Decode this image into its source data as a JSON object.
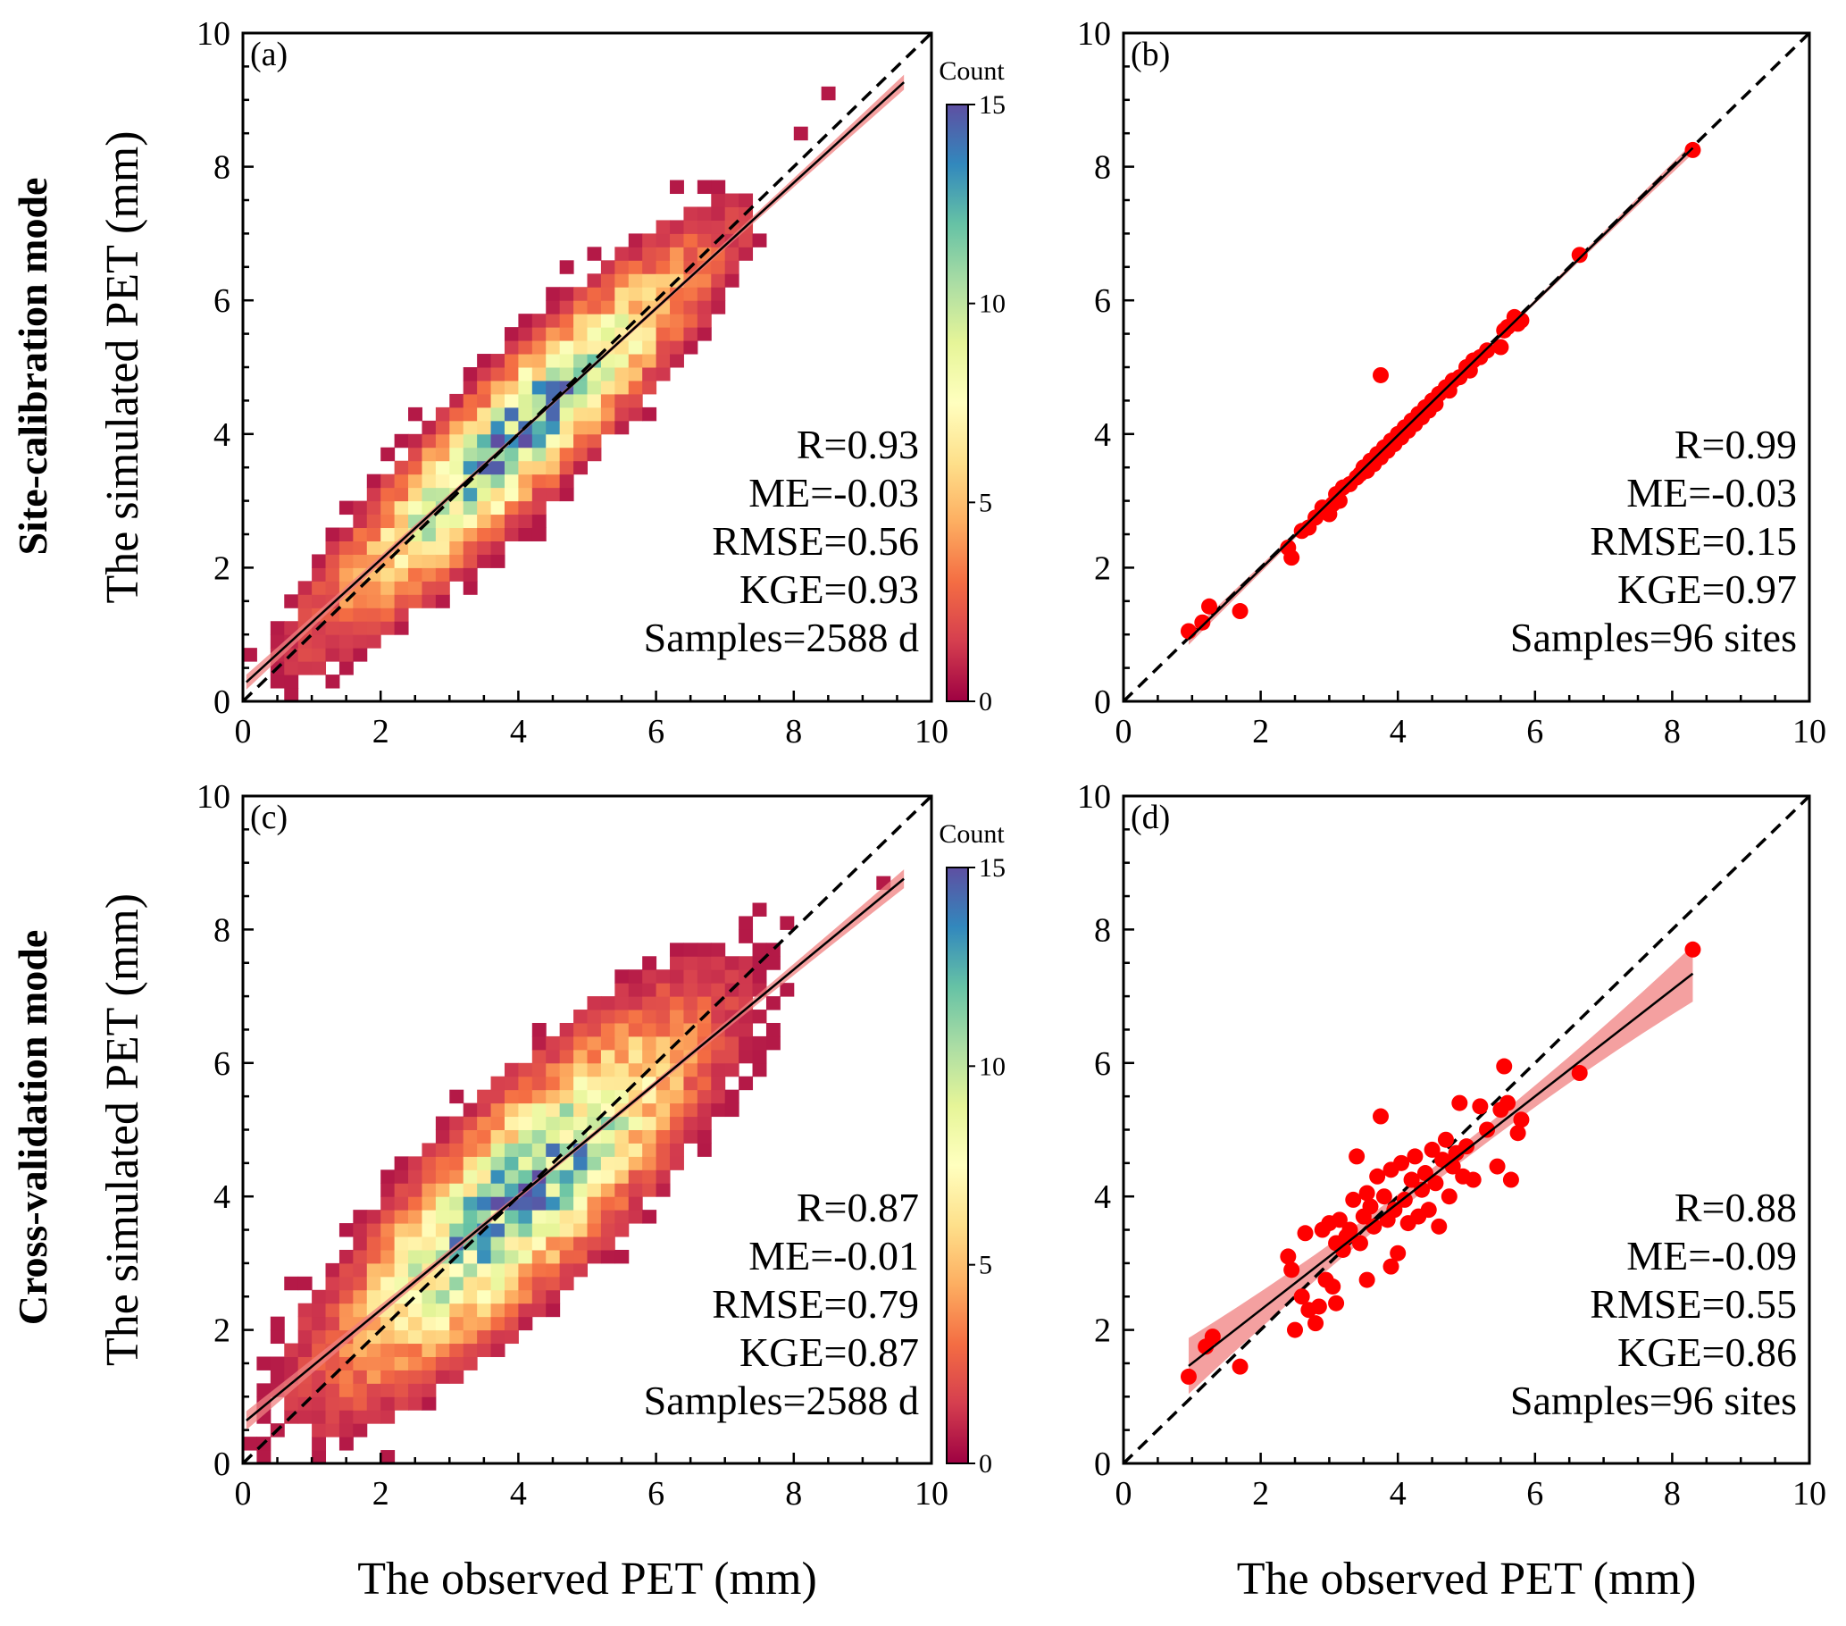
{
  "figure": {
    "row_titles": [
      "Site-calibration mode",
      "Cross-validation mode"
    ],
    "x_axis_title": "The observed PET (mm)",
    "y_axis_title": "The simulated PET (mm)"
  },
  "colors": {
    "identity_line": "#000000",
    "regression_line": "#000000",
    "confidence_band": "#f08080",
    "scatter_points": "#ff0000",
    "colormap": [
      "#9e0142",
      "#d53e4f",
      "#f46d43",
      "#fdae61",
      "#fee08b",
      "#ffffbf",
      "#e6f598",
      "#abdda4",
      "#66c2a5",
      "#3288bd",
      "#5e4fa2"
    ]
  },
  "chart_data": [
    {
      "panel": "(a)",
      "type": "heatmap",
      "mode": "Site-calibration mode",
      "xlabel": "",
      "ylabel": "The simulated PET (mm)",
      "xlim": [
        0,
        10
      ],
      "ylim": [
        0,
        10
      ],
      "xticks": [
        "0",
        "2",
        "4",
        "6",
        "8",
        "10"
      ],
      "yticks": [
        "0",
        "2",
        "4",
        "6",
        "8",
        "10"
      ],
      "bin_size": 0.2,
      "colorbar": {
        "title": "Count",
        "range": [
          0,
          15
        ],
        "ticks": [
          "0",
          "5",
          "10",
          "15"
        ]
      },
      "identity_line": [
        0,
        10
      ],
      "regression": {
        "slope": 0.94,
        "intercept": 0.24,
        "x_range": [
          0.05,
          9.6
        ],
        "band": 0.08
      },
      "density_model": {
        "count": 2588,
        "x_mean": 4.0,
        "x_sd": 1.55,
        "resid_sd": 0.56,
        "peak": 15
      },
      "stats": {
        "r": "R=0.93",
        "me": "ME=-0.03",
        "rmse": "RMSE=0.56",
        "kge": "KGE=0.93",
        "samples": "Samples=2588 d"
      }
    },
    {
      "panel": "(b)",
      "type": "scatter",
      "mode": "Site-calibration mode",
      "xlabel": "",
      "ylabel": "",
      "xlim": [
        0,
        10
      ],
      "ylim": [
        0,
        10
      ],
      "xticks": [
        "0",
        "2",
        "4",
        "6",
        "8",
        "10"
      ],
      "yticks": [
        "0",
        "2",
        "4",
        "6",
        "8",
        "10"
      ],
      "identity_line": [
        0,
        10
      ],
      "regression": {
        "slope": 1.0,
        "intercept": -0.02,
        "x_range": [
          0.95,
          8.3
        ],
        "band": 0.06
      },
      "points": [
        [
          0.95,
          1.05
        ],
        [
          1.15,
          1.18
        ],
        [
          1.25,
          1.42
        ],
        [
          1.7,
          1.35
        ],
        [
          2.4,
          2.3
        ],
        [
          2.45,
          2.15
        ],
        [
          2.6,
          2.55
        ],
        [
          2.7,
          2.6
        ],
        [
          2.8,
          2.75
        ],
        [
          2.9,
          2.9
        ],
        [
          3.0,
          2.8
        ],
        [
          3.05,
          2.95
        ],
        [
          3.1,
          3.1
        ],
        [
          3.15,
          3.0
        ],
        [
          3.2,
          3.2
        ],
        [
          3.3,
          3.25
        ],
        [
          3.4,
          3.35
        ],
        [
          3.45,
          3.4
        ],
        [
          3.5,
          3.5
        ],
        [
          3.55,
          3.45
        ],
        [
          3.6,
          3.6
        ],
        [
          3.65,
          3.55
        ],
        [
          3.7,
          3.7
        ],
        [
          3.75,
          3.65
        ],
        [
          3.75,
          4.88
        ],
        [
          3.8,
          3.8
        ],
        [
          3.85,
          3.75
        ],
        [
          3.9,
          3.9
        ],
        [
          3.95,
          3.85
        ],
        [
          4.0,
          4.0
        ],
        [
          4.05,
          3.95
        ],
        [
          4.1,
          4.1
        ],
        [
          4.15,
          4.05
        ],
        [
          4.2,
          4.2
        ],
        [
          4.25,
          4.15
        ],
        [
          4.3,
          4.3
        ],
        [
          4.35,
          4.25
        ],
        [
          4.4,
          4.4
        ],
        [
          4.45,
          4.35
        ],
        [
          4.5,
          4.5
        ],
        [
          4.55,
          4.45
        ],
        [
          4.6,
          4.6
        ],
        [
          4.7,
          4.7
        ],
        [
          4.75,
          4.65
        ],
        [
          4.8,
          4.8
        ],
        [
          4.9,
          4.85
        ],
        [
          5.0,
          5.0
        ],
        [
          5.05,
          4.95
        ],
        [
          5.1,
          5.1
        ],
        [
          5.2,
          5.15
        ],
        [
          5.3,
          5.25
        ],
        [
          5.5,
          5.3
        ],
        [
          5.55,
          5.55
        ],
        [
          5.6,
          5.6
        ],
        [
          5.7,
          5.75
        ],
        [
          5.75,
          5.65
        ],
        [
          5.8,
          5.7
        ],
        [
          6.65,
          6.68
        ],
        [
          8.3,
          8.25
        ]
      ],
      "stats": {
        "r": "R=0.99",
        "me": "ME=-0.03",
        "rmse": "RMSE=0.15",
        "kge": "KGE=0.97",
        "samples": "Samples=96 sites"
      }
    },
    {
      "panel": "(c)",
      "type": "heatmap",
      "mode": "Cross-validation mode",
      "xlabel": "The observed PET (mm)",
      "ylabel": "The simulated PET (mm)",
      "xlim": [
        0,
        10
      ],
      "ylim": [
        0,
        10
      ],
      "xticks": [
        "0",
        "2",
        "4",
        "6",
        "8",
        "10"
      ],
      "yticks": [
        "0",
        "2",
        "4",
        "6",
        "8",
        "10"
      ],
      "bin_size": 0.2,
      "colorbar": {
        "title": "Count",
        "range": [
          0,
          15
        ],
        "ticks": [
          "0",
          "5",
          "10",
          "15"
        ]
      },
      "identity_line": [
        0,
        10
      ],
      "regression": {
        "slope": 0.85,
        "intercept": 0.6,
        "x_range": [
          0.05,
          9.6
        ],
        "band": 0.1
      },
      "density_model": {
        "count": 2588,
        "x_mean": 4.0,
        "x_sd": 1.55,
        "resid_sd": 0.79,
        "peak": 15
      },
      "stats": {
        "r": "R=0.87",
        "me": "ME=-0.01",
        "rmse": "RMSE=0.79",
        "kge": "KGE=0.87",
        "samples": "Samples=2588 d"
      }
    },
    {
      "panel": "(d)",
      "type": "scatter",
      "mode": "Cross-validation mode",
      "xlabel": "The observed PET (mm)",
      "ylabel": "",
      "xlim": [
        0,
        10
      ],
      "ylim": [
        0,
        10
      ],
      "xticks": [
        "0",
        "2",
        "4",
        "6",
        "8",
        "10"
      ],
      "yticks": [
        "0",
        "2",
        "4",
        "6",
        "8",
        "10"
      ],
      "identity_line": [
        0,
        10
      ],
      "regression": {
        "slope": 0.8,
        "intercept": 0.7,
        "x_range": [
          0.95,
          8.3
        ],
        "band": 0.3
      },
      "points": [
        [
          0.95,
          1.3
        ],
        [
          1.2,
          1.75
        ],
        [
          1.3,
          1.9
        ],
        [
          1.7,
          1.45
        ],
        [
          2.4,
          3.1
        ],
        [
          2.45,
          2.9
        ],
        [
          2.5,
          2.0
        ],
        [
          2.6,
          2.5
        ],
        [
          2.65,
          3.45
        ],
        [
          2.7,
          2.3
        ],
        [
          2.8,
          2.1
        ],
        [
          2.85,
          2.35
        ],
        [
          2.9,
          3.5
        ],
        [
          2.95,
          2.75
        ],
        [
          3.0,
          3.6
        ],
        [
          3.05,
          2.65
        ],
        [
          3.1,
          2.4
        ],
        [
          3.1,
          3.3
        ],
        [
          3.15,
          3.65
        ],
        [
          3.2,
          3.2
        ],
        [
          3.25,
          3.4
        ],
        [
          3.3,
          3.5
        ],
        [
          3.35,
          3.95
        ],
        [
          3.4,
          4.6
        ],
        [
          3.45,
          3.3
        ],
        [
          3.5,
          3.7
        ],
        [
          3.55,
          2.75
        ],
        [
          3.55,
          4.05
        ],
        [
          3.6,
          3.85
        ],
        [
          3.65,
          3.55
        ],
        [
          3.7,
          4.3
        ],
        [
          3.75,
          5.2
        ],
        [
          3.8,
          4.0
        ],
        [
          3.85,
          3.65
        ],
        [
          3.9,
          2.95
        ],
        [
          3.9,
          4.4
        ],
        [
          3.95,
          3.8
        ],
        [
          4.0,
          3.15
        ],
        [
          4.05,
          4.5
        ],
        [
          4.1,
          3.95
        ],
        [
          4.15,
          3.6
        ],
        [
          4.2,
          4.25
        ],
        [
          4.25,
          4.6
        ],
        [
          4.3,
          3.7
        ],
        [
          4.35,
          4.1
        ],
        [
          4.4,
          4.35
        ],
        [
          4.45,
          3.8
        ],
        [
          4.5,
          4.7
        ],
        [
          4.55,
          4.2
        ],
        [
          4.6,
          3.55
        ],
        [
          4.65,
          4.55
        ],
        [
          4.7,
          4.85
        ],
        [
          4.75,
          4.0
        ],
        [
          4.8,
          4.45
        ],
        [
          4.85,
          4.65
        ],
        [
          4.9,
          5.4
        ],
        [
          4.95,
          4.3
        ],
        [
          5.0,
          4.75
        ],
        [
          5.1,
          4.25
        ],
        [
          5.2,
          5.35
        ],
        [
          5.3,
          5.0
        ],
        [
          5.45,
          4.45
        ],
        [
          5.5,
          5.3
        ],
        [
          5.55,
          5.95
        ],
        [
          5.6,
          5.4
        ],
        [
          5.65,
          4.25
        ],
        [
          5.75,
          4.95
        ],
        [
          5.8,
          5.15
        ],
        [
          6.65,
          5.85
        ],
        [
          8.3,
          7.7
        ]
      ],
      "stats": {
        "r": "R=0.88",
        "me": "ME=-0.09",
        "rmse": "RMSE=0.55",
        "kge": "KGE=0.86",
        "samples": "Samples=96 sites"
      }
    }
  ]
}
